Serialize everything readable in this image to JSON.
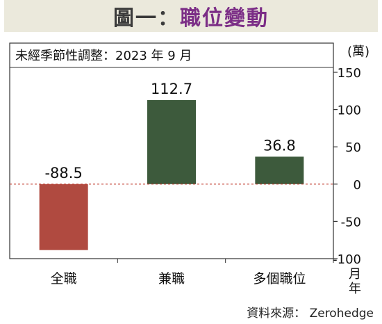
{
  "header": {
    "title_prefix": "圖一：",
    "title_main": "職位變動"
  },
  "source": "資料來源： Zerohedge",
  "chart_data": {
    "type": "bar",
    "subtitle": "未經季節性調整：2023 年 9 月",
    "unit_label": "(萬)",
    "x_unit_label": "月年",
    "categories": [
      "全職",
      "兼職",
      "多個職位"
    ],
    "values": [
      -88.5,
      112.7,
      36.8
    ],
    "data_labels": [
      "-88.5",
      "112.7",
      "36.8"
    ],
    "bar_colors": [
      "#b04a40",
      "#3d5a3c",
      "#3d5a3c"
    ],
    "zero_line_color": "#c0392b",
    "yticks": [
      150,
      100,
      50,
      0,
      -50,
      -100
    ],
    "ylim": [
      -100,
      150
    ],
    "yaxis_position": "right",
    "grid": false,
    "legend": "none"
  }
}
